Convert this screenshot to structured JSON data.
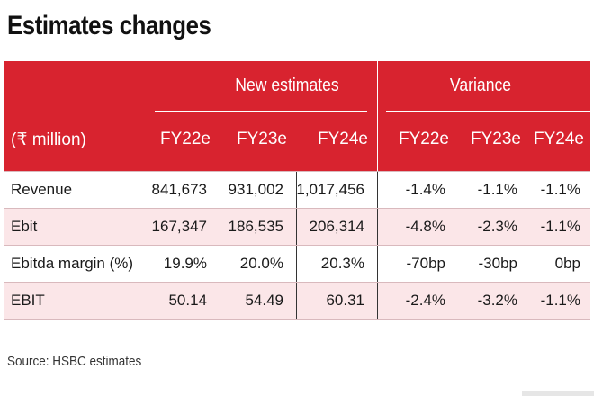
{
  "title": "Estimates changes",
  "header": {
    "unit_label": "(₹ million)",
    "groups": [
      {
        "label": "New estimates"
      },
      {
        "label": "Variance"
      }
    ],
    "columns": [
      "FY22e",
      "FY23e",
      "FY24e",
      "FY22e",
      "FY23e",
      "FY24e"
    ]
  },
  "rows": [
    {
      "label": "Revenue",
      "values": [
        "841,673",
        "931,002",
        "1,017,456"
      ],
      "variance": [
        "-1.4%",
        "-1.1%",
        "-1.1%"
      ]
    },
    {
      "label": "Ebit",
      "values": [
        "167,347",
        "186,535",
        "206,314"
      ],
      "variance": [
        "-4.8%",
        "-2.3%",
        "-1.1%"
      ]
    },
    {
      "label": "Ebitda margin (%)",
      "values": [
        "19.9%",
        "20.0%",
        "20.3%"
      ],
      "variance": [
        "-70bp",
        "-30bp",
        "0bp"
      ]
    },
    {
      "label": "EBIT",
      "values": [
        "50.14",
        "54.49",
        "60.31"
      ],
      "variance": [
        "-2.4%",
        "-3.2%",
        "-1.1%"
      ]
    }
  ],
  "source": "Source: HSBC estimates",
  "colors": {
    "header_bg": "#d8232f",
    "alt_row_bg": "#fbe6e8"
  }
}
